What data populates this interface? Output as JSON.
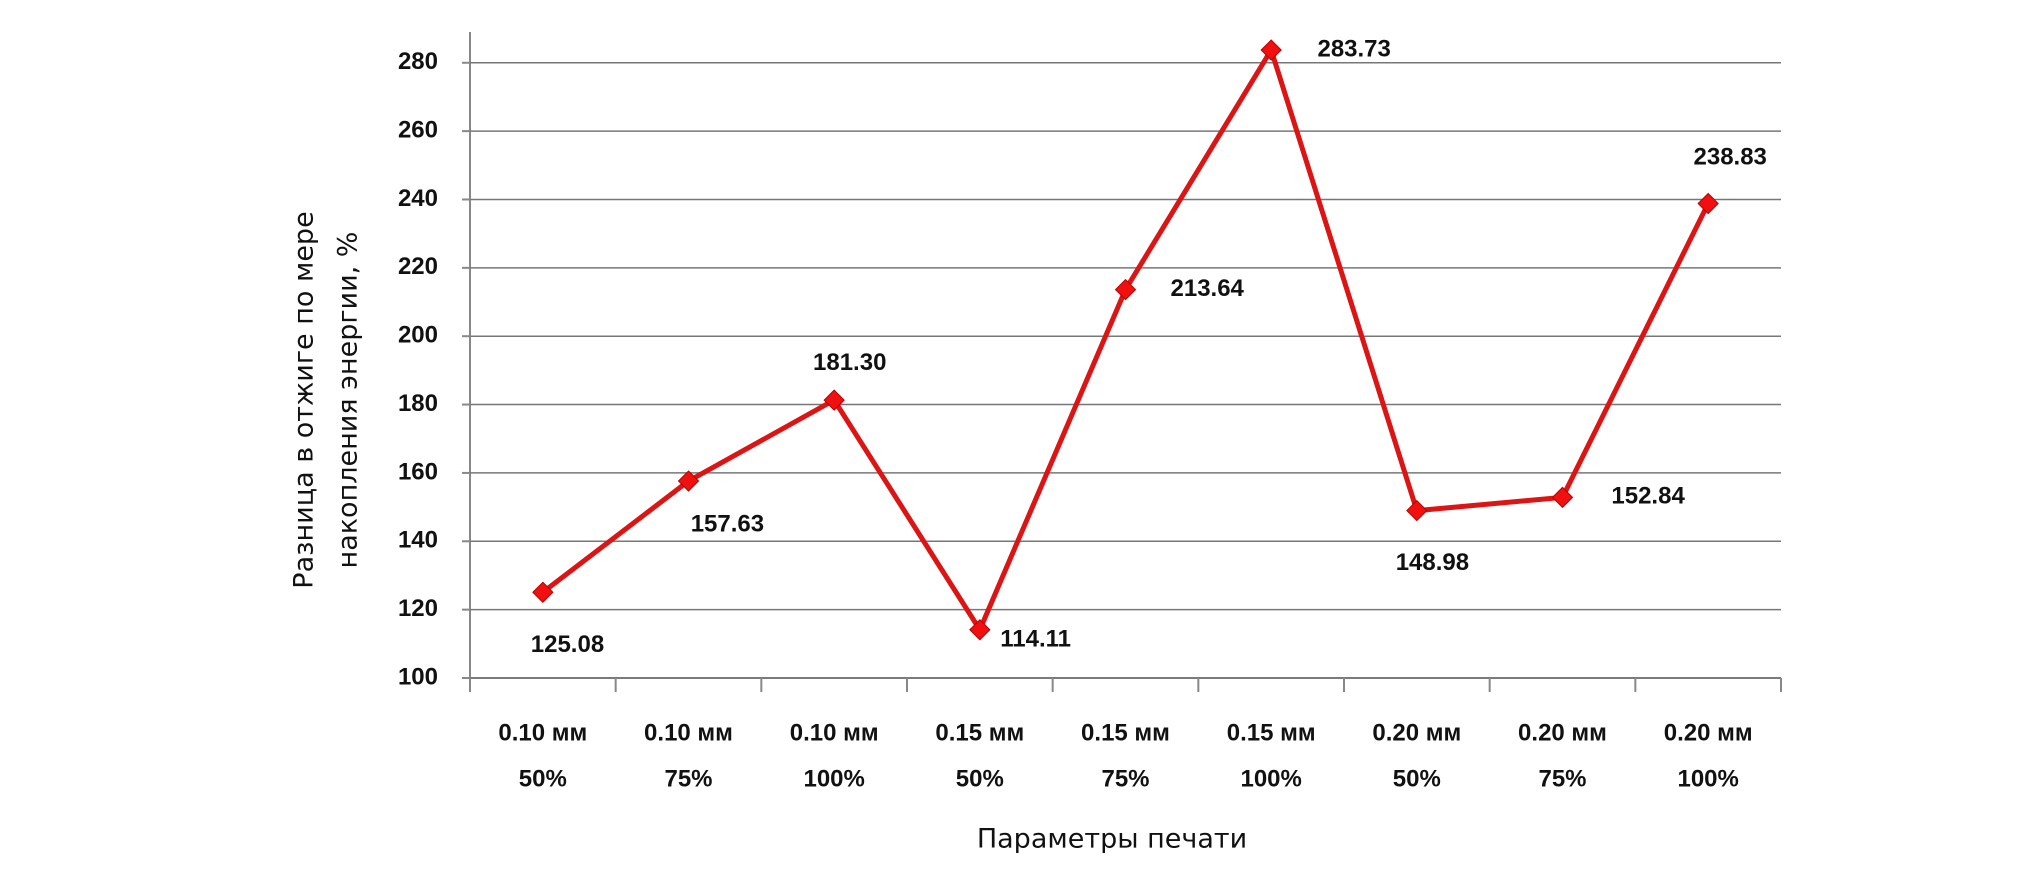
{
  "chart_data": {
    "type": "line",
    "ylabel": [
      "Разница в отжиге по мере",
      "накопления энергии, %"
    ],
    "xlabel": "Параметры печати",
    "categories": [
      [
        "0.10 мм",
        "50%"
      ],
      [
        "0.10 мм",
        "75%"
      ],
      [
        "0.10 мм",
        "100%"
      ],
      [
        "0.15 мм",
        "50%"
      ],
      [
        "0.15 мм",
        "75%"
      ],
      [
        "0.15 мм",
        "100%"
      ],
      [
        "0.20 мм",
        "50%"
      ],
      [
        "0.20 мм",
        "75%"
      ],
      [
        "0.20 мм",
        "100%"
      ]
    ],
    "values": [
      125.08,
      157.63,
      181.3,
      114.11,
      213.64,
      283.73,
      148.98,
      152.84,
      238.83
    ],
    "value_labels": [
      "125.08",
      "157.63",
      "181.30",
      "114.11",
      "213.64",
      "283.73",
      "148.98",
      "152.84",
      "238.83"
    ],
    "color": "#dc1414",
    "ylim": [
      100,
      289
    ],
    "yticks": [
      100,
      120,
      140,
      160,
      180,
      200,
      220,
      240,
      260,
      280
    ],
    "grid": true
  }
}
